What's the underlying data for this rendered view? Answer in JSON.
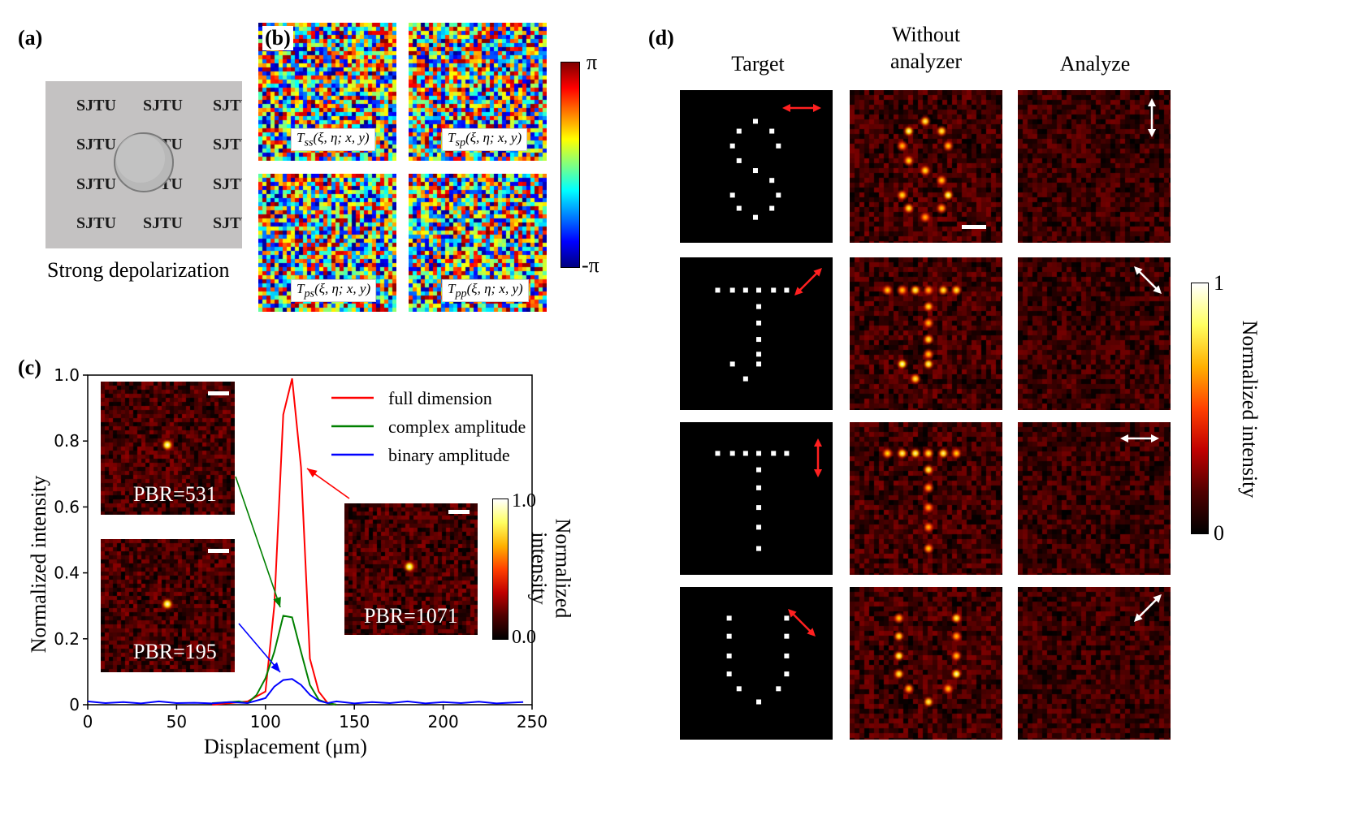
{
  "panel_a": {
    "label": "(a)",
    "watermark": "SJTU",
    "caption": "Strong depolarization"
  },
  "panel_b": {
    "label": "(b)",
    "matrices": [
      "T_ss(ξ,η;x,y)",
      "T_sp(ξ,η;x,y)",
      "T_ps(ξ,η;x,y)",
      "T_pp(ξ,η;x,y)"
    ],
    "matrix_subs": [
      "ss",
      "sp",
      "ps",
      "pp"
    ],
    "matrix_args": "(ξ, η; x, y)",
    "colorbar": {
      "max_label": "π",
      "min_label": "-π"
    }
  },
  "panel_c": {
    "label": "(c)",
    "insets": [
      {
        "pbr": "PBR=531"
      },
      {
        "pbr": "PBR=195"
      },
      {
        "pbr": "PBR=1071"
      }
    ],
    "inset_colorbar": {
      "max_label": "1.0",
      "min_label": "0.0",
      "title_line1": "Normalized",
      "title_line2": "intensity"
    }
  },
  "chart_data": {
    "type": "line",
    "xlabel": "Displacement (μm)",
    "ylabel": "Normalized intensity",
    "xlim": [
      0,
      250
    ],
    "ylim": [
      0,
      1.0
    ],
    "xticks": [
      "0",
      "50",
      "100",
      "150",
      "200",
      "250"
    ],
    "yticks": [
      "0",
      "0.2",
      "0.4",
      "0.6",
      "0.8",
      "1.0"
    ],
    "legend_position": "top-right",
    "series": [
      {
        "name": "full dimension",
        "color": "#ff0000",
        "x": [
          70,
          80,
          90,
          100,
          105,
          110,
          115,
          120,
          125,
          130,
          135,
          140
        ],
        "y": [
          0.0,
          0.005,
          0.01,
          0.04,
          0.3,
          0.88,
          0.99,
          0.72,
          0.14,
          0.04,
          0.005,
          0.0
        ]
      },
      {
        "name": "complex amplitude",
        "color": "#008000",
        "x": [
          70,
          80,
          85,
          90,
          95,
          100,
          105,
          110,
          115,
          120,
          125,
          130,
          135,
          140
        ],
        "y": [
          0.005,
          0.008,
          0.01,
          0.005,
          0.03,
          0.08,
          0.16,
          0.27,
          0.265,
          0.16,
          0.06,
          0.015,
          0.005,
          0.0
        ]
      },
      {
        "name": "binary amplitude",
        "color": "#0000ff",
        "x": [
          0,
          10,
          20,
          30,
          40,
          50,
          60,
          70,
          80,
          90,
          100,
          105,
          110,
          115,
          120,
          125,
          130,
          135,
          140,
          150,
          160,
          170,
          180,
          190,
          200,
          210,
          220,
          230,
          240,
          245
        ],
        "y": [
          0.01,
          0.005,
          0.008,
          0.004,
          0.01,
          0.005,
          0.006,
          0.004,
          0.008,
          0.005,
          0.02,
          0.055,
          0.075,
          0.078,
          0.06,
          0.03,
          0.012,
          0.005,
          0.01,
          0.004,
          0.008,
          0.005,
          0.01,
          0.004,
          0.008,
          0.005,
          0.009,
          0.004,
          0.007,
          0.008
        ]
      }
    ]
  },
  "panel_d": {
    "label": "(d)",
    "columns": [
      "Target",
      "Without\nanalyzer",
      "Analyze"
    ],
    "col_target": "Target",
    "col_without_1": "Without",
    "col_without_2": "analyzer",
    "col_analyze": "Analyze",
    "colorbar": {
      "max_label": "1",
      "min_label": "0",
      "title": "Normalized intensity"
    },
    "rows": [
      {
        "letter": "S",
        "polarization": "horizontal",
        "analyzer": "vertical"
      },
      {
        "letter": "T",
        "polarization": "diagonal-45",
        "analyzer": "diagonal-135"
      },
      {
        "letter": "T",
        "polarization": "vertical",
        "analyzer": "horizontal"
      },
      {
        "letter": "U",
        "polarization": "diagonal-135",
        "analyzer": "diagonal-45"
      }
    ],
    "arrow_colors": {
      "target": "#ff2020",
      "analyzer": "#ffffff"
    }
  }
}
